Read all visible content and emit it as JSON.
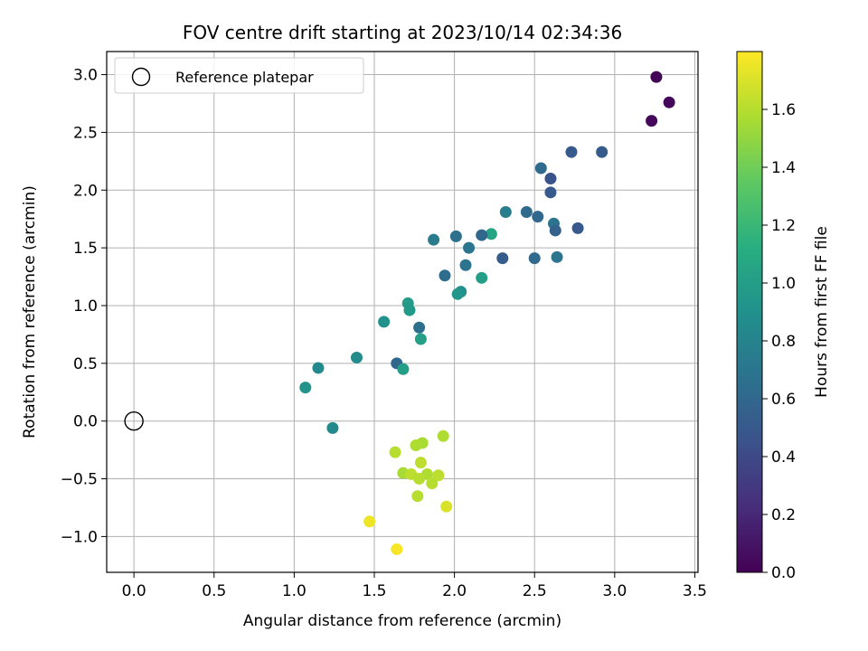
{
  "chart_data": {
    "type": "scatter",
    "title": "FOV centre drift starting at 2023/10/14 02:34:36",
    "xlabel": "Angular distance from reference (arcmin)",
    "ylabel": "Rotation from reference (arcmin)",
    "xlim": [
      -0.17,
      3.52
    ],
    "ylim": [
      -1.31,
      3.2
    ],
    "xticks": [
      "0.0",
      "0.5",
      "1.0",
      "1.5",
      "2.0",
      "2.5",
      "3.0",
      "3.5"
    ],
    "yticks": [
      "−1.0",
      "−0.5",
      "0.0",
      "0.5",
      "1.0",
      "1.5",
      "2.0",
      "2.5",
      "3.0"
    ],
    "grid": true,
    "legend": {
      "position": "upper-left",
      "label": "Reference platepar"
    },
    "reference": {
      "x": 0.0,
      "y": 0.0
    },
    "colorbar": {
      "label": "Hours from first FF file",
      "range": [
        0.0,
        1.8
      ],
      "ticks": [
        "0.0",
        "0.2",
        "0.4",
        "0.6",
        "0.8",
        "1.0",
        "1.2",
        "1.4",
        "1.6"
      ],
      "colormap": "viridis"
    },
    "points": [
      {
        "x": 3.26,
        "y": 2.98,
        "t": 0.02
      },
      {
        "x": 3.34,
        "y": 2.76,
        "t": 0.03
      },
      {
        "x": 3.23,
        "y": 2.6,
        "t": 0.04
      },
      {
        "x": 2.73,
        "y": 2.33,
        "t": 0.5
      },
      {
        "x": 2.92,
        "y": 2.33,
        "t": 0.52
      },
      {
        "x": 2.54,
        "y": 2.19,
        "t": 0.62
      },
      {
        "x": 2.6,
        "y": 2.1,
        "t": 0.46
      },
      {
        "x": 2.6,
        "y": 1.98,
        "t": 0.5
      },
      {
        "x": 2.32,
        "y": 1.81,
        "t": 0.76
      },
      {
        "x": 2.45,
        "y": 1.81,
        "t": 0.62
      },
      {
        "x": 2.52,
        "y": 1.77,
        "t": 0.6
      },
      {
        "x": 2.62,
        "y": 1.71,
        "t": 0.68
      },
      {
        "x": 2.63,
        "y": 1.65,
        "t": 0.56
      },
      {
        "x": 2.77,
        "y": 1.67,
        "t": 0.5
      },
      {
        "x": 2.23,
        "y": 1.62,
        "t": 1.04
      },
      {
        "x": 2.17,
        "y": 1.61,
        "t": 0.6
      },
      {
        "x": 2.01,
        "y": 1.6,
        "t": 0.66
      },
      {
        "x": 1.87,
        "y": 1.57,
        "t": 0.74
      },
      {
        "x": 2.09,
        "y": 1.5,
        "t": 0.7
      },
      {
        "x": 2.3,
        "y": 1.41,
        "t": 0.52
      },
      {
        "x": 2.5,
        "y": 1.41,
        "t": 0.62
      },
      {
        "x": 2.64,
        "y": 1.42,
        "t": 0.7
      },
      {
        "x": 2.07,
        "y": 1.35,
        "t": 0.68
      },
      {
        "x": 1.94,
        "y": 1.26,
        "t": 0.64
      },
      {
        "x": 2.17,
        "y": 1.24,
        "t": 1.0
      },
      {
        "x": 2.04,
        "y": 1.12,
        "t": 0.9
      },
      {
        "x": 2.02,
        "y": 1.1,
        "t": 0.94
      },
      {
        "x": 1.71,
        "y": 1.02,
        "t": 0.98
      },
      {
        "x": 1.72,
        "y": 0.96,
        "t": 0.96
      },
      {
        "x": 1.56,
        "y": 0.86,
        "t": 0.9
      },
      {
        "x": 1.78,
        "y": 0.81,
        "t": 0.66
      },
      {
        "x": 1.79,
        "y": 0.71,
        "t": 1.02
      },
      {
        "x": 1.39,
        "y": 0.55,
        "t": 0.86
      },
      {
        "x": 1.64,
        "y": 0.5,
        "t": 0.6
      },
      {
        "x": 1.68,
        "y": 0.45,
        "t": 1.0
      },
      {
        "x": 1.15,
        "y": 0.46,
        "t": 0.84
      },
      {
        "x": 1.07,
        "y": 0.29,
        "t": 0.92
      },
      {
        "x": 1.24,
        "y": -0.06,
        "t": 0.84
      },
      {
        "x": 1.93,
        "y": -0.13,
        "t": 1.58
      },
      {
        "x": 1.8,
        "y": -0.19,
        "t": 1.56
      },
      {
        "x": 1.76,
        "y": -0.21,
        "t": 1.58
      },
      {
        "x": 1.63,
        "y": -0.27,
        "t": 1.6
      },
      {
        "x": 1.79,
        "y": -0.36,
        "t": 1.62
      },
      {
        "x": 1.68,
        "y": -0.45,
        "t": 1.56
      },
      {
        "x": 1.73,
        "y": -0.46,
        "t": 1.62
      },
      {
        "x": 1.83,
        "y": -0.46,
        "t": 1.58
      },
      {
        "x": 1.9,
        "y": -0.47,
        "t": 1.62
      },
      {
        "x": 1.78,
        "y": -0.5,
        "t": 1.6
      },
      {
        "x": 1.86,
        "y": -0.54,
        "t": 1.6
      },
      {
        "x": 1.77,
        "y": -0.65,
        "t": 1.6
      },
      {
        "x": 1.95,
        "y": -0.74,
        "t": 1.7
      },
      {
        "x": 1.47,
        "y": -0.87,
        "t": 1.76
      },
      {
        "x": 1.64,
        "y": -1.11,
        "t": 1.78
      }
    ]
  }
}
